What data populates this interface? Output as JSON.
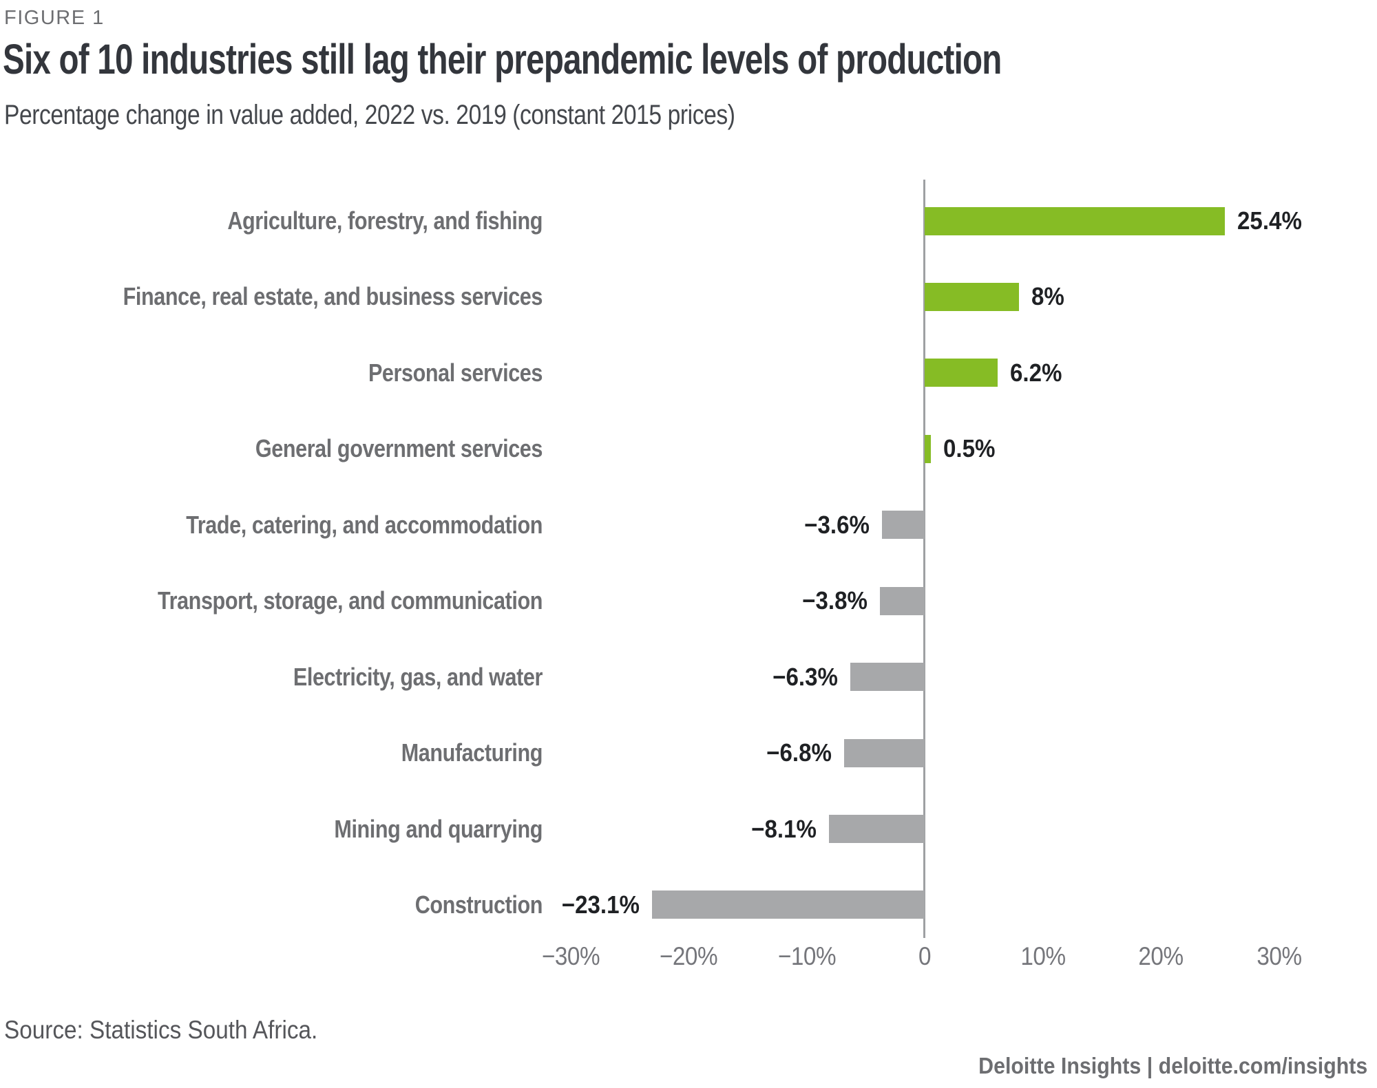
{
  "figure_label": "FIGURE 1",
  "title": "Six of 10 industries still lag their prepandemic levels of production",
  "subtitle": "Percentage change in value added, 2022 vs. 2019 (constant 2015 prices)",
  "source": "Source: Statistics South Africa.",
  "footer": "Deloitte Insights | deloitte.com/insights",
  "colors": {
    "positive_bar": "#86BC25",
    "negative_bar": "#A7A8AA",
    "axis_line": "#9EA0A3",
    "category_label": "#6D6E71",
    "value_label": "#1F2124"
  },
  "chart_data": {
    "type": "bar",
    "orientation": "horizontal",
    "title": "Six of 10 industries still lag their prepandemic levels of production",
    "subtitle": "Percentage change in value added, 2022 vs. 2019 (constant 2015 prices)",
    "xlabel": "",
    "ylabel": "",
    "xlim": [
      -30,
      30
    ],
    "grid": false,
    "legend": false,
    "categories": [
      "Agriculture, forestry, and fishing",
      "Finance, real estate, and business services",
      "Personal services",
      "General government services",
      "Trade, catering, and accommodation",
      "Transport, storage, and communication",
      "Electricity, gas, and water",
      "Manufacturing",
      "Mining and quarrying",
      "Construction"
    ],
    "values": [
      25.4,
      8,
      6.2,
      0.5,
      -3.6,
      -3.8,
      -6.3,
      -6.8,
      -8.1,
      -23.1
    ],
    "value_labels": [
      "25.4%",
      "8%",
      "6.2%",
      "0.5%",
      "−3.6%",
      "−3.8%",
      "−6.3%",
      "−6.8%",
      "−8.1%",
      "−23.1%"
    ],
    "x_ticks": [
      {
        "value": -30,
        "label": "−30%"
      },
      {
        "value": -20,
        "label": "−20%"
      },
      {
        "value": -10,
        "label": "−10%"
      },
      {
        "value": 0,
        "label": "0"
      },
      {
        "value": 10,
        "label": "10%"
      },
      {
        "value": 20,
        "label": "20%"
      },
      {
        "value": 30,
        "label": "30%"
      }
    ]
  }
}
